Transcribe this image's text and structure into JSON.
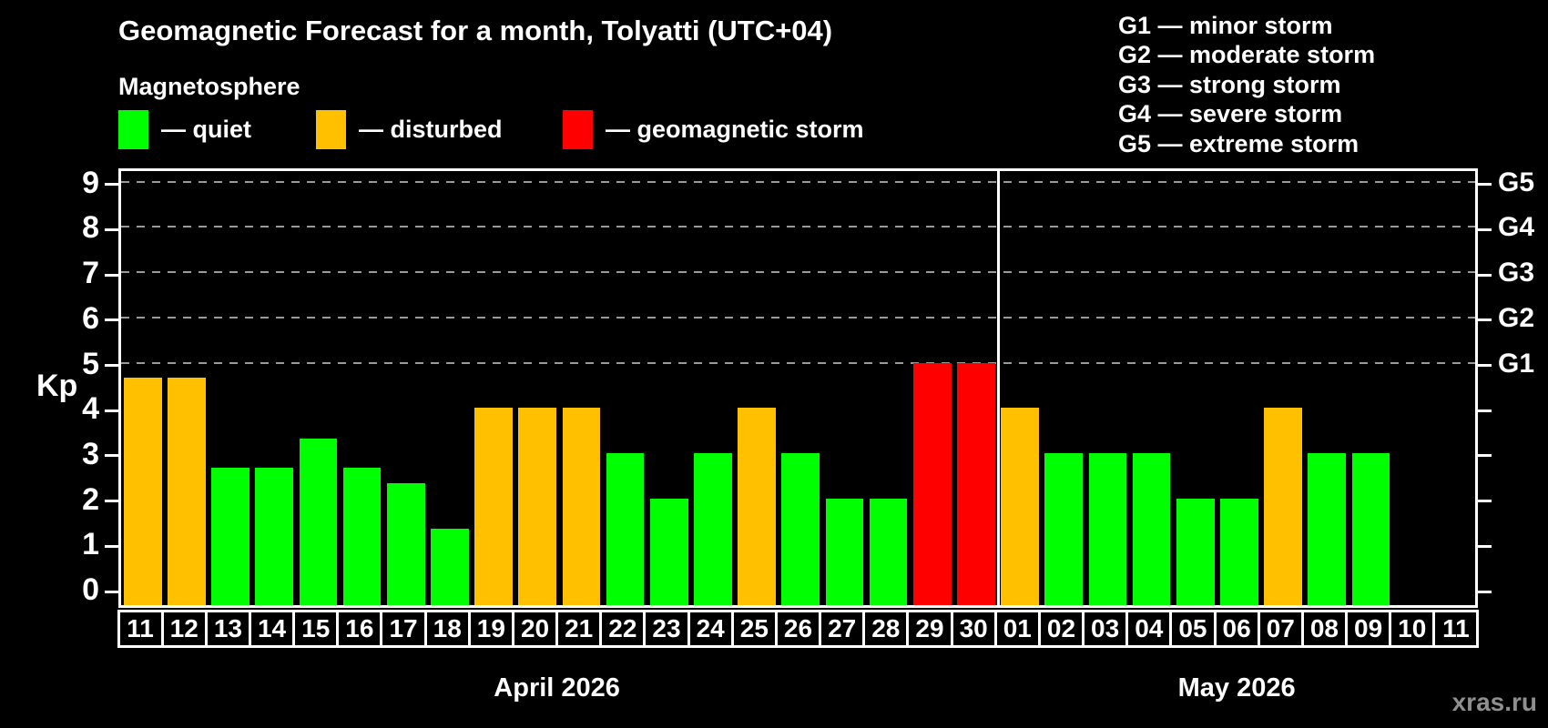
{
  "title": "Geomagnetic Forecast for a month, Tolyatti (UTC+04)",
  "subtitle": "Magnetosphere",
  "legend": {
    "items": [
      {
        "key": "quiet",
        "label": "— quiet",
        "color": "#00ff00",
        "x": 130
      },
      {
        "key": "disturbed",
        "label": "— disturbed",
        "color": "#ffc000",
        "x": 347
      },
      {
        "key": "storm",
        "label": "— geomagnetic storm",
        "color": "#ff0000",
        "x": 618
      }
    ]
  },
  "g_scale_legend": [
    "G1 — minor storm",
    "G2 — moderate storm",
    "G3 — strong storm",
    "G4 — severe storm",
    "G5 — extreme storm"
  ],
  "watermark": "xras.ru",
  "chart_data": {
    "type": "bar",
    "title": "Geomagnetic Forecast for a month, Tolyatti (UTC+04)",
    "ylabel": "Kp",
    "ylim": [
      0,
      9.7
    ],
    "yticks": [
      0,
      1,
      2,
      3,
      4,
      5,
      6,
      7,
      8,
      9
    ],
    "gridlines_at": [
      5,
      6,
      7,
      8,
      9
    ],
    "grid": "dashed-horizontal",
    "legend_position": "top",
    "right_axis_labels": [
      {
        "kp": 5,
        "label": "G1"
      },
      {
        "kp": 6,
        "label": "G2"
      },
      {
        "kp": 7,
        "label": "G3"
      },
      {
        "kp": 8,
        "label": "G4"
      },
      {
        "kp": 9,
        "label": "G5"
      }
    ],
    "status_colors": {
      "quiet": "#00ff00",
      "disturbed": "#ffc000",
      "storm": "#ff0000"
    },
    "months": [
      {
        "label": "April 2026",
        "span": 20
      },
      {
        "label": "May 2026",
        "span": 11
      }
    ],
    "categories": [
      "11",
      "12",
      "13",
      "14",
      "15",
      "16",
      "17",
      "18",
      "19",
      "20",
      "21",
      "22",
      "23",
      "24",
      "25",
      "26",
      "27",
      "28",
      "29",
      "30",
      "01",
      "02",
      "03",
      "04",
      "05",
      "06",
      "07",
      "08",
      "09",
      "10",
      "11"
    ],
    "bars": [
      {
        "day": "11",
        "month": "April 2026",
        "kp": 4.67,
        "status": "disturbed"
      },
      {
        "day": "12",
        "month": "April 2026",
        "kp": 4.67,
        "status": "disturbed"
      },
      {
        "day": "13",
        "month": "April 2026",
        "kp": 2.67,
        "status": "quiet"
      },
      {
        "day": "14",
        "month": "April 2026",
        "kp": 2.67,
        "status": "quiet"
      },
      {
        "day": "15",
        "month": "April 2026",
        "kp": 3.33,
        "status": "quiet"
      },
      {
        "day": "16",
        "month": "April 2026",
        "kp": 2.67,
        "status": "quiet"
      },
      {
        "day": "17",
        "month": "April 2026",
        "kp": 2.33,
        "status": "quiet"
      },
      {
        "day": "18",
        "month": "April 2026",
        "kp": 1.33,
        "status": "quiet"
      },
      {
        "day": "19",
        "month": "April 2026",
        "kp": 4,
        "status": "disturbed"
      },
      {
        "day": "20",
        "month": "April 2026",
        "kp": 4,
        "status": "disturbed"
      },
      {
        "day": "21",
        "month": "April 2026",
        "kp": 4,
        "status": "disturbed"
      },
      {
        "day": "22",
        "month": "April 2026",
        "kp": 3,
        "status": "quiet"
      },
      {
        "day": "23",
        "month": "April 2026",
        "kp": 2,
        "status": "quiet"
      },
      {
        "day": "24",
        "month": "April 2026",
        "kp": 3,
        "status": "quiet"
      },
      {
        "day": "25",
        "month": "April 2026",
        "kp": 4,
        "status": "disturbed"
      },
      {
        "day": "26",
        "month": "April 2026",
        "kp": 3,
        "status": "quiet"
      },
      {
        "day": "27",
        "month": "April 2026",
        "kp": 2,
        "status": "quiet"
      },
      {
        "day": "28",
        "month": "April 2026",
        "kp": 2,
        "status": "quiet"
      },
      {
        "day": "29",
        "month": "April 2026",
        "kp": 5,
        "status": "storm"
      },
      {
        "day": "30",
        "month": "April 2026",
        "kp": 5,
        "status": "storm"
      },
      {
        "day": "01",
        "month": "May 2026",
        "kp": 4,
        "status": "disturbed"
      },
      {
        "day": "02",
        "month": "May 2026",
        "kp": 3,
        "status": "quiet"
      },
      {
        "day": "03",
        "month": "May 2026",
        "kp": 3,
        "status": "quiet"
      },
      {
        "day": "04",
        "month": "May 2026",
        "kp": 3,
        "status": "quiet"
      },
      {
        "day": "05",
        "month": "May 2026",
        "kp": 2,
        "status": "quiet"
      },
      {
        "day": "06",
        "month": "May 2026",
        "kp": 2,
        "status": "quiet"
      },
      {
        "day": "07",
        "month": "May 2026",
        "kp": 4,
        "status": "disturbed"
      },
      {
        "day": "08",
        "month": "May 2026",
        "kp": 3,
        "status": "quiet"
      },
      {
        "day": "09",
        "month": "May 2026",
        "kp": 3,
        "status": "quiet"
      },
      {
        "day": "10",
        "month": "May 2026",
        "kp": null,
        "status": "none"
      },
      {
        "day": "11",
        "month": "May 2026",
        "kp": null,
        "status": "none"
      }
    ]
  }
}
